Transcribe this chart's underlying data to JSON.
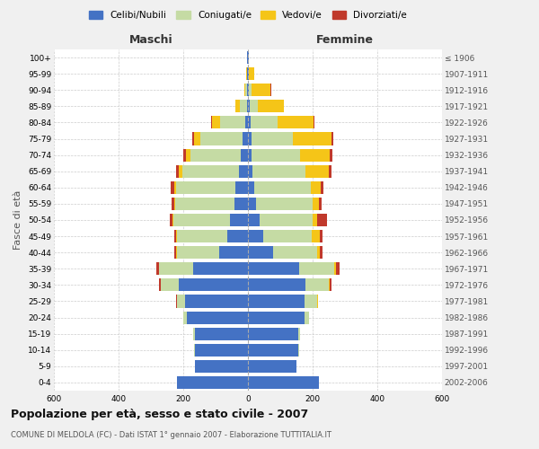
{
  "age_groups": [
    "0-4",
    "5-9",
    "10-14",
    "15-19",
    "20-24",
    "25-29",
    "30-34",
    "35-39",
    "40-44",
    "45-49",
    "50-54",
    "55-59",
    "60-64",
    "65-69",
    "70-74",
    "75-79",
    "80-84",
    "85-89",
    "90-94",
    "95-99",
    "100+"
  ],
  "birth_years": [
    "2002-2006",
    "1997-2001",
    "1992-1996",
    "1987-1991",
    "1982-1986",
    "1977-1981",
    "1972-1976",
    "1967-1971",
    "1962-1966",
    "1957-1961",
    "1952-1956",
    "1947-1951",
    "1942-1946",
    "1937-1941",
    "1932-1936",
    "1927-1931",
    "1922-1926",
    "1917-1921",
    "1912-1916",
    "1907-1911",
    "≤ 1906"
  ],
  "males": {
    "celibi": [
      220,
      165,
      165,
      165,
      190,
      195,
      215,
      170,
      90,
      65,
      55,
      42,
      38,
      28,
      22,
      18,
      8,
      4,
      2,
      2,
      2
    ],
    "coniugati": [
      0,
      0,
      2,
      5,
      10,
      25,
      55,
      105,
      130,
      155,
      175,
      182,
      185,
      175,
      155,
      130,
      78,
      20,
      5,
      2,
      0
    ],
    "vedovi": [
      0,
      0,
      0,
      0,
      0,
      0,
      0,
      0,
      1,
      1,
      2,
      3,
      5,
      10,
      15,
      20,
      25,
      15,
      5,
      2,
      0
    ],
    "divorziati": [
      0,
      0,
      0,
      0,
      0,
      2,
      5,
      8,
      8,
      8,
      10,
      10,
      10,
      10,
      8,
      5,
      2,
      0,
      0,
      0,
      0
    ]
  },
  "females": {
    "nubili": [
      220,
      150,
      155,
      155,
      175,
      175,
      178,
      158,
      78,
      48,
      35,
      24,
      20,
      14,
      12,
      10,
      8,
      5,
      2,
      2,
      2
    ],
    "coniugate": [
      0,
      0,
      2,
      5,
      15,
      40,
      72,
      110,
      135,
      148,
      165,
      175,
      175,
      165,
      150,
      128,
      85,
      25,
      8,
      2,
      0
    ],
    "vedove": [
      0,
      0,
      0,
      0,
      0,
      1,
      2,
      5,
      8,
      25,
      15,
      20,
      30,
      70,
      90,
      120,
      110,
      80,
      60,
      15,
      2
    ],
    "divorziate": [
      0,
      0,
      0,
      0,
      0,
      2,
      5,
      10,
      10,
      10,
      30,
      10,
      8,
      8,
      8,
      5,
      3,
      2,
      2,
      0,
      0
    ]
  },
  "colors": {
    "celibi": "#4472C4",
    "coniugati": "#c5dba4",
    "vedovi": "#f5c518",
    "divorziati": "#c0392b"
  },
  "xlim": 600,
  "title": "Popolazione per età, sesso e stato civile - 2007",
  "subtitle": "COMUNE DI MELDOLA (FC) - Dati ISTAT 1° gennaio 2007 - Elaborazione TUTTITALIA.IT",
  "xlabel_left": "Maschi",
  "xlabel_right": "Femmine",
  "ylabel_left": "Fasce di età",
  "bg_color": "#f0f0f0",
  "plot_bg": "#ffffff"
}
